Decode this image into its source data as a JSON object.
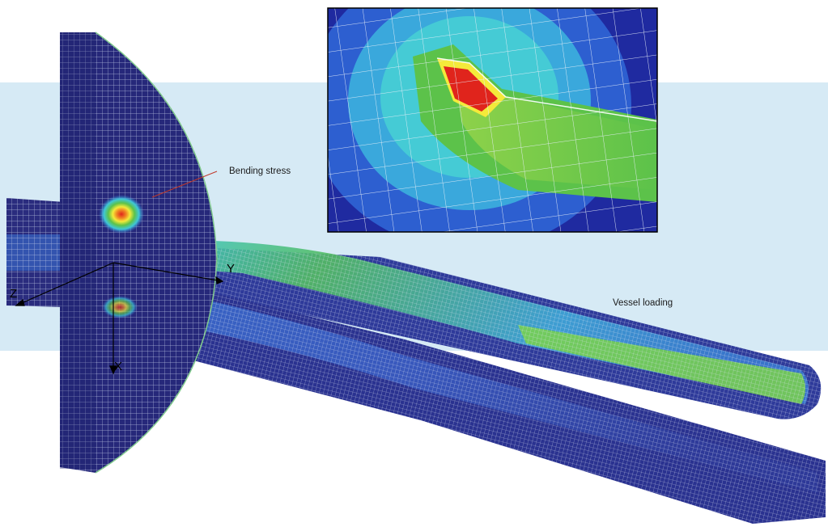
{
  "colors": {
    "band": "#d6eaf5",
    "mesh_dark": "#26287a",
    "mesh_navy": "#2e3a9a",
    "stress_blue": "#3a6fd0",
    "stress_cyan": "#3fc7d8",
    "stress_green": "#5cc24a",
    "stress_yellow": "#f4ea3a",
    "stress_red": "#e0241c",
    "grid_line": "#c9d3ea",
    "leader_line": "#c0392b"
  },
  "labels": {
    "bending_stress": "Bending stress",
    "vessel_loading": "Vessel loading"
  },
  "axes": {
    "x": "X",
    "y": "Y",
    "z": "Z"
  },
  "inset": {
    "description_icon": "stress-detail-zoom"
  }
}
